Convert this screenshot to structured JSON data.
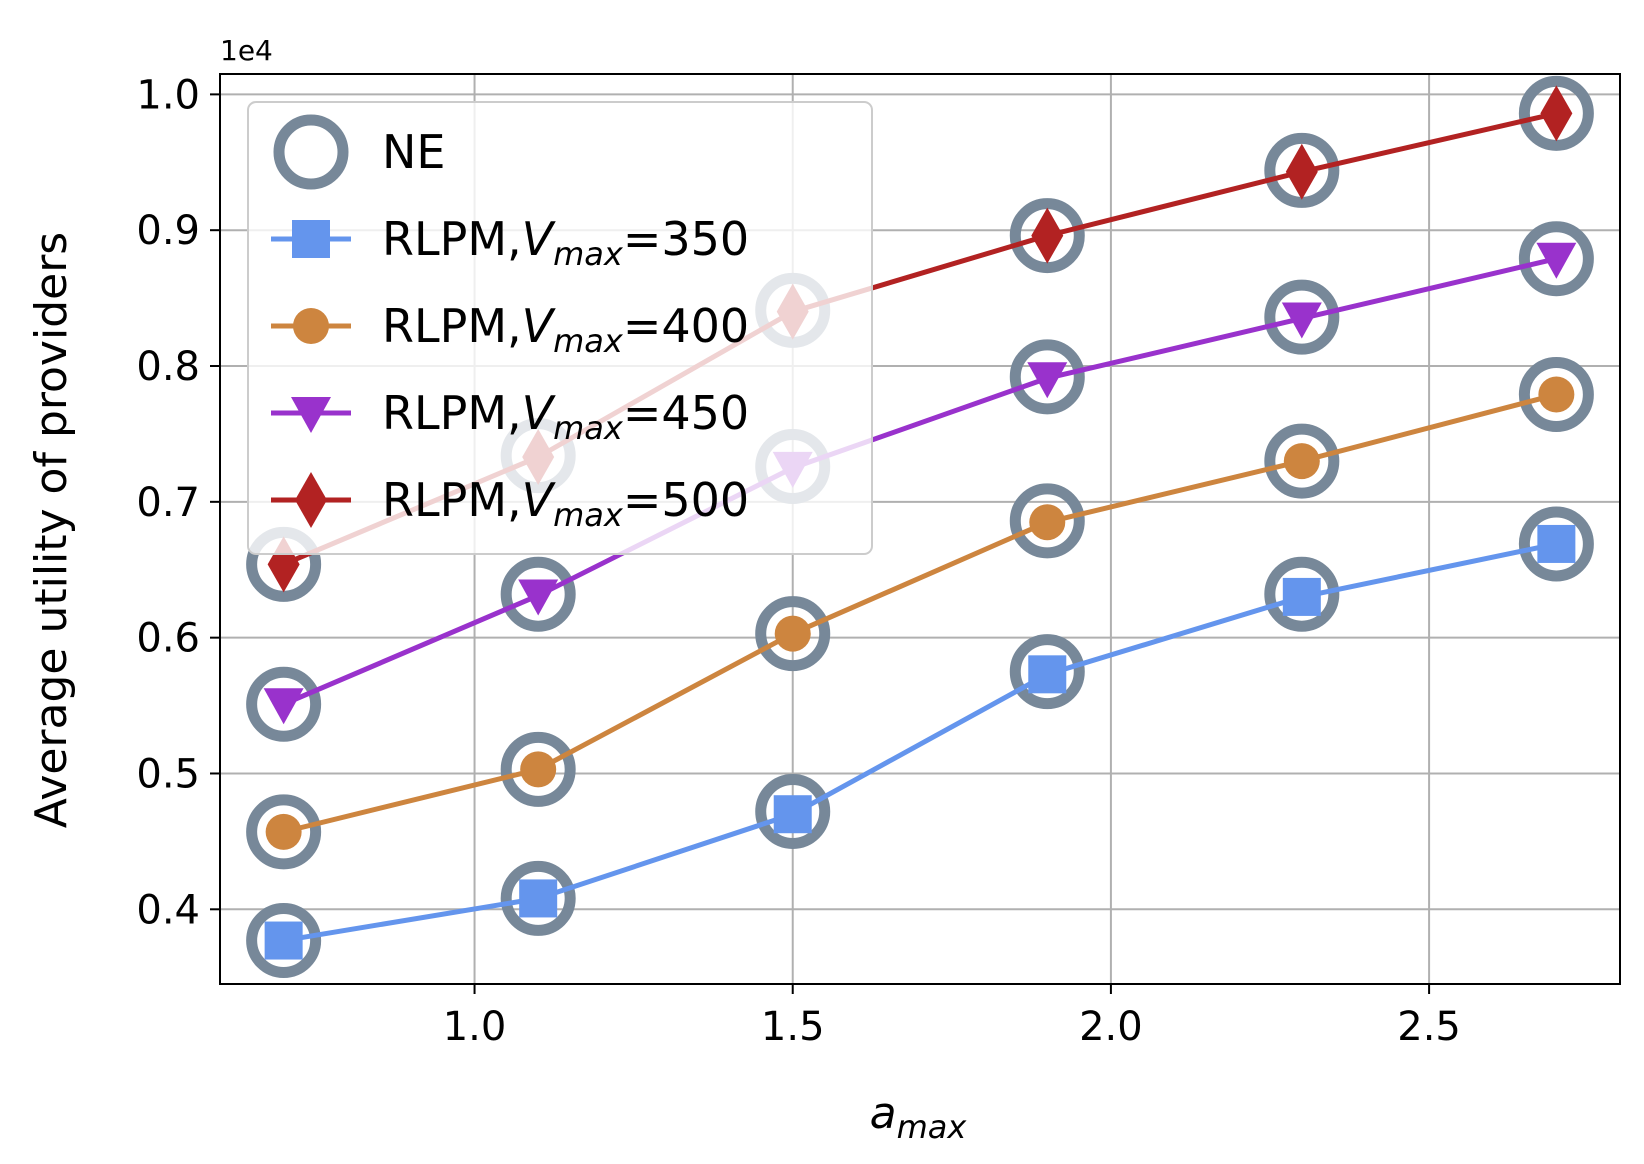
{
  "chart_data": {
    "type": "line",
    "xlabel_base": "a",
    "xlabel_sub": "max",
    "ylabel": "Average utility of providers",
    "y_offset_label": "1e4",
    "x": [
      0.7,
      1.1,
      1.5,
      1.9,
      2.3,
      2.7
    ],
    "xlim": [
      0.6,
      2.8
    ],
    "ylim": [
      0.345,
      1.015
    ],
    "x_ticks": [
      1.0,
      1.5,
      2.0,
      2.5
    ],
    "x_tick_labels": [
      "1.0",
      "1.5",
      "2.0",
      "2.5"
    ],
    "y_ticks": [
      0.4,
      0.5,
      0.6,
      0.7,
      0.8,
      0.9,
      1.0
    ],
    "y_tick_labels": [
      "0.4",
      "0.5",
      "0.6",
      "0.7",
      "0.8",
      "0.9",
      "1.0"
    ],
    "grid": true,
    "legend_position": "upper-left",
    "ne_series": {
      "name": "NE",
      "color": "#778899",
      "points": [
        [
          0.7,
          0.377
        ],
        [
          1.1,
          0.408
        ],
        [
          1.5,
          0.472
        ],
        [
          1.9,
          0.575
        ],
        [
          2.3,
          0.632
        ],
        [
          2.7,
          0.669
        ],
        [
          0.7,
          0.457
        ],
        [
          1.1,
          0.503
        ],
        [
          1.5,
          0.603
        ],
        [
          1.9,
          0.686
        ],
        [
          2.3,
          0.73
        ],
        [
          2.7,
          0.779
        ],
        [
          0.7,
          0.551
        ],
        [
          1.1,
          0.632
        ],
        [
          1.5,
          0.726
        ],
        [
          1.9,
          0.792
        ],
        [
          2.3,
          0.836
        ],
        [
          2.7,
          0.879
        ],
        [
          0.7,
          0.654
        ],
        [
          1.1,
          0.734
        ],
        [
          1.5,
          0.841
        ],
        [
          1.9,
          0.896
        ],
        [
          2.3,
          0.944
        ],
        [
          2.7,
          0.986
        ]
      ]
    },
    "series": [
      {
        "name_prefix": "RLPM,",
        "name_var": "V",
        "name_sub": "max",
        "name_suffix": "=350",
        "color": "#6495ED",
        "marker": "square",
        "values": [
          0.377,
          0.408,
          0.47,
          0.573,
          0.63,
          0.669
        ]
      },
      {
        "name_prefix": "RLPM,",
        "name_var": "V",
        "name_sub": "max",
        "name_suffix": "=400",
        "color": "#CD853F",
        "marker": "circle",
        "values": [
          0.457,
          0.503,
          0.603,
          0.685,
          0.73,
          0.779
        ]
      },
      {
        "name_prefix": "RLPM,",
        "name_var": "V",
        "name_sub": "max",
        "name_suffix": "=450",
        "color": "#9932CC",
        "marker": "triangle-down",
        "values": [
          0.551,
          0.631,
          0.725,
          0.791,
          0.835,
          0.879
        ]
      },
      {
        "name_prefix": "RLPM,",
        "name_var": "V",
        "name_sub": "max",
        "name_suffix": "=500",
        "color": "#B22222",
        "marker": "diamond",
        "values": [
          0.654,
          0.733,
          0.84,
          0.896,
          0.943,
          0.986
        ]
      }
    ]
  }
}
